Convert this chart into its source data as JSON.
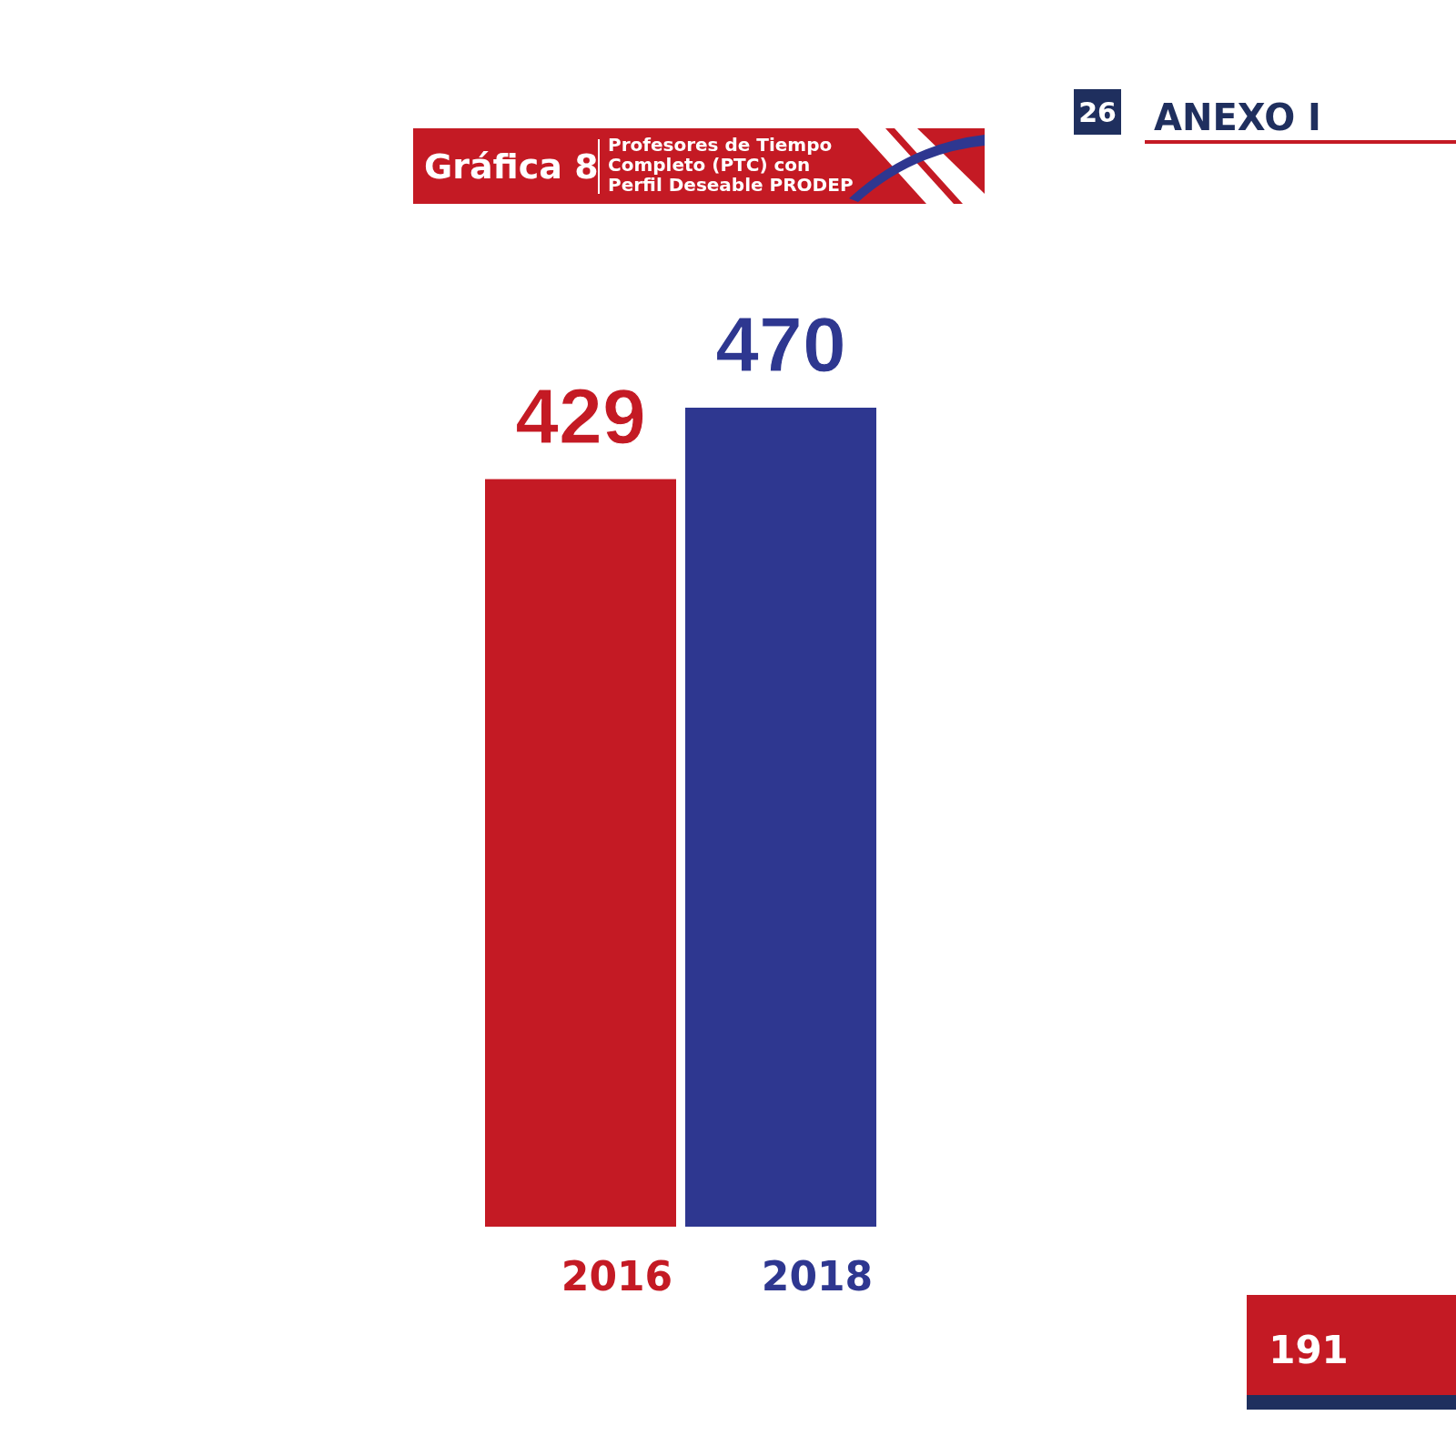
{
  "chart_data": {
    "type": "bar",
    "title": "Gráfica 8",
    "subtitle": "Profesores de Tiempo Completo (PTC) con Perfil Deseable PRODEP",
    "categories": [
      "2016",
      "2018"
    ],
    "values": [
      429,
      470
    ],
    "colors": [
      "#c41a24",
      "#2e3790"
    ],
    "data_labels": true,
    "annotations": [
      "26",
      "ANEXO I",
      "191"
    ]
  }
}
